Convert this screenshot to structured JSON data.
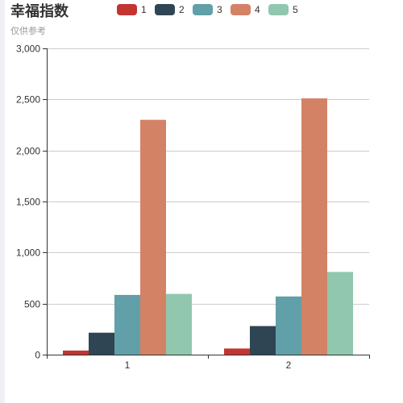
{
  "chart_data": {
    "type": "bar",
    "title": "幸福指数",
    "subtitle": "仅供参考",
    "categories": [
      "1",
      "2"
    ],
    "series": [
      {
        "name": "1",
        "color": "#c23531",
        "values": [
          40,
          60
        ]
      },
      {
        "name": "2",
        "color": "#2f4554",
        "values": [
          215,
          280
        ]
      },
      {
        "name": "3",
        "color": "#61a0a8",
        "values": [
          585,
          570
        ]
      },
      {
        "name": "4",
        "color": "#d48265",
        "values": [
          2300,
          2510
        ]
      },
      {
        "name": "5",
        "color": "#91c7ae",
        "values": [
          595,
          810
        ]
      }
    ],
    "ylim": [
      0,
      3000
    ],
    "yticks": [
      0,
      500,
      1000,
      1500,
      2000,
      2500,
      3000
    ],
    "ytick_labels": [
      "0",
      "500",
      "1,000",
      "1,500",
      "2,000",
      "2,500",
      "3,000"
    ],
    "grid": true,
    "legend_position": "top-center"
  }
}
